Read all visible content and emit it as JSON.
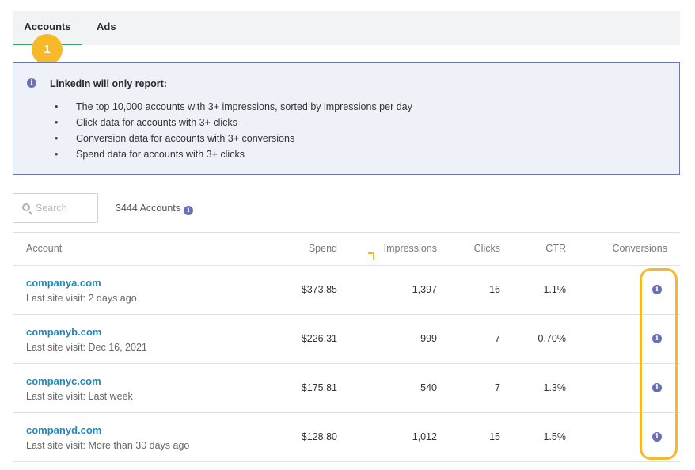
{
  "tabs": [
    {
      "label": "Accounts",
      "active": true
    },
    {
      "label": "Ads",
      "active": false
    }
  ],
  "step_badge": "1",
  "notice": {
    "title": "LinkedIn will only report:",
    "items": [
      "The top 10,000 accounts with 3+ impressions, sorted by impressions per day",
      "Click data for accounts with 3+ clicks",
      "Conversion data for accounts with 3+ conversions",
      "Spend data for accounts with 3+ clicks"
    ]
  },
  "search": {
    "placeholder": "Search",
    "value": ""
  },
  "account_count": "3444 Accounts",
  "table": {
    "headers": {
      "account": "Account",
      "spend": "Spend",
      "impressions": "Impressions",
      "clicks": "Clicks",
      "ctr": "CTR",
      "conversions": "Conversions"
    },
    "rows": [
      {
        "name": "companya.com",
        "last_visit": "Last site visit: 2 days ago",
        "spend": "$373.85",
        "impressions": "1,397",
        "clicks": "16",
        "ctr": "1.1%"
      },
      {
        "name": "companyb.com",
        "last_visit": "Last site visit: Dec 16, 2021",
        "spend": "$226.31",
        "impressions": "999",
        "clicks": "7",
        "ctr": "0.70%"
      },
      {
        "name": "companyc.com",
        "last_visit": "Last site visit: Last week",
        "spend": "$175.81",
        "impressions": "540",
        "clicks": "7",
        "ctr": "1.3%"
      },
      {
        "name": "companyd.com",
        "last_visit": "Last site visit: More than 30 days ago",
        "spend": "$128.80",
        "impressions": "1,012",
        "clicks": "15",
        "ctr": "1.5%"
      }
    ]
  },
  "info_icon_glyph": "i",
  "colors": {
    "accent_tab": "#3aa56b",
    "link": "#1a8bc0",
    "highlight": "#f7b928",
    "info": "#6b6fb8"
  }
}
